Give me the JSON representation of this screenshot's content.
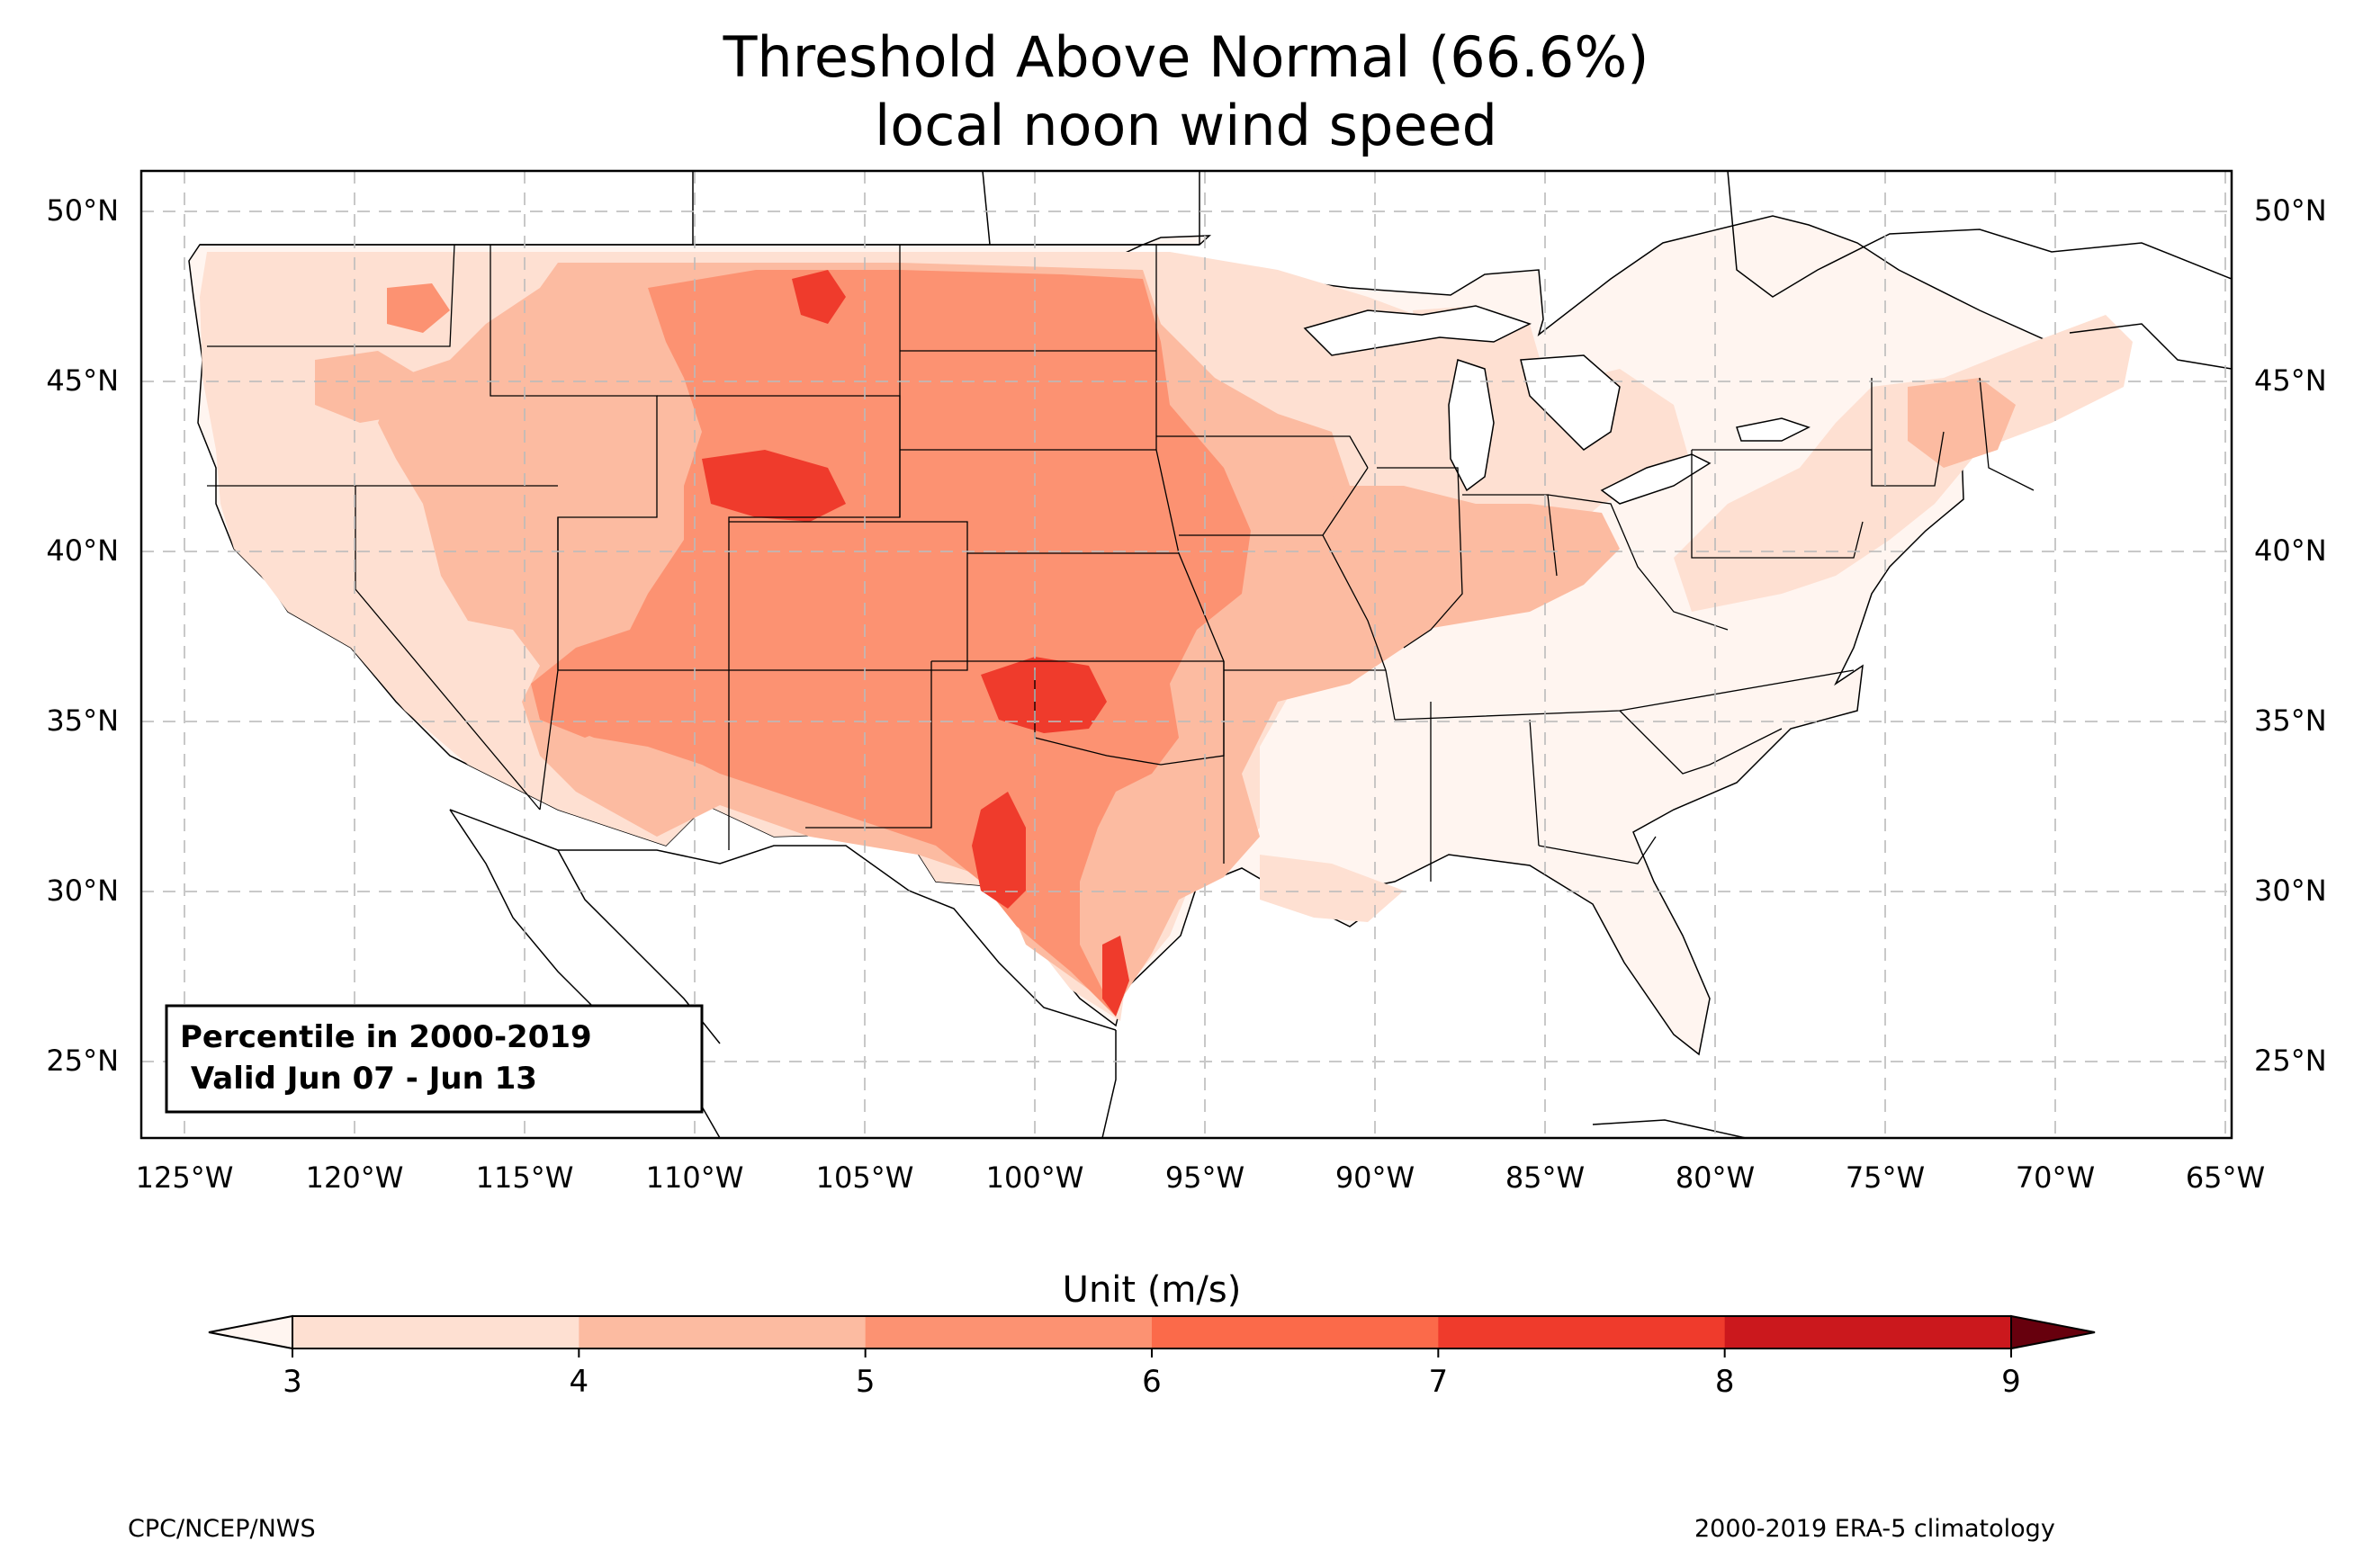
{
  "title": {
    "line1": "Threshold Above Normal (66.6%)",
    "line2": "local noon wind speed"
  },
  "map": {
    "lat_labels": [
      "25°N",
      "30°N",
      "35°N",
      "40°N",
      "45°N",
      "50°N"
    ],
    "lon_labels": [
      "125°W",
      "120°W",
      "115°W",
      "110°W",
      "105°W",
      "100°W",
      "95°W",
      "90°W",
      "85°W",
      "80°W",
      "75°W",
      "70°W",
      "65°W"
    ],
    "info_box": {
      "line1": "Percentile in 2000-2019",
      "line2": " Valid Jun 07 - Jun 13"
    }
  },
  "colorbar": {
    "label": "Unit (m/s)",
    "ticks": [
      "3",
      "4",
      "5",
      "6",
      "7",
      "8",
      "9"
    ],
    "colors": [
      "#fee0d2",
      "#fcbba1",
      "#fc9272",
      "#fb6a4a",
      "#ef3b2c",
      "#cb181d",
      "#a50f15",
      "#67000d"
    ],
    "under_color": "#fff5f0",
    "over_color": "#67000d"
  },
  "footer": {
    "left": "CPC/NCEP/NWS",
    "right": "2000-2019 ERA-5 climatology"
  }
}
